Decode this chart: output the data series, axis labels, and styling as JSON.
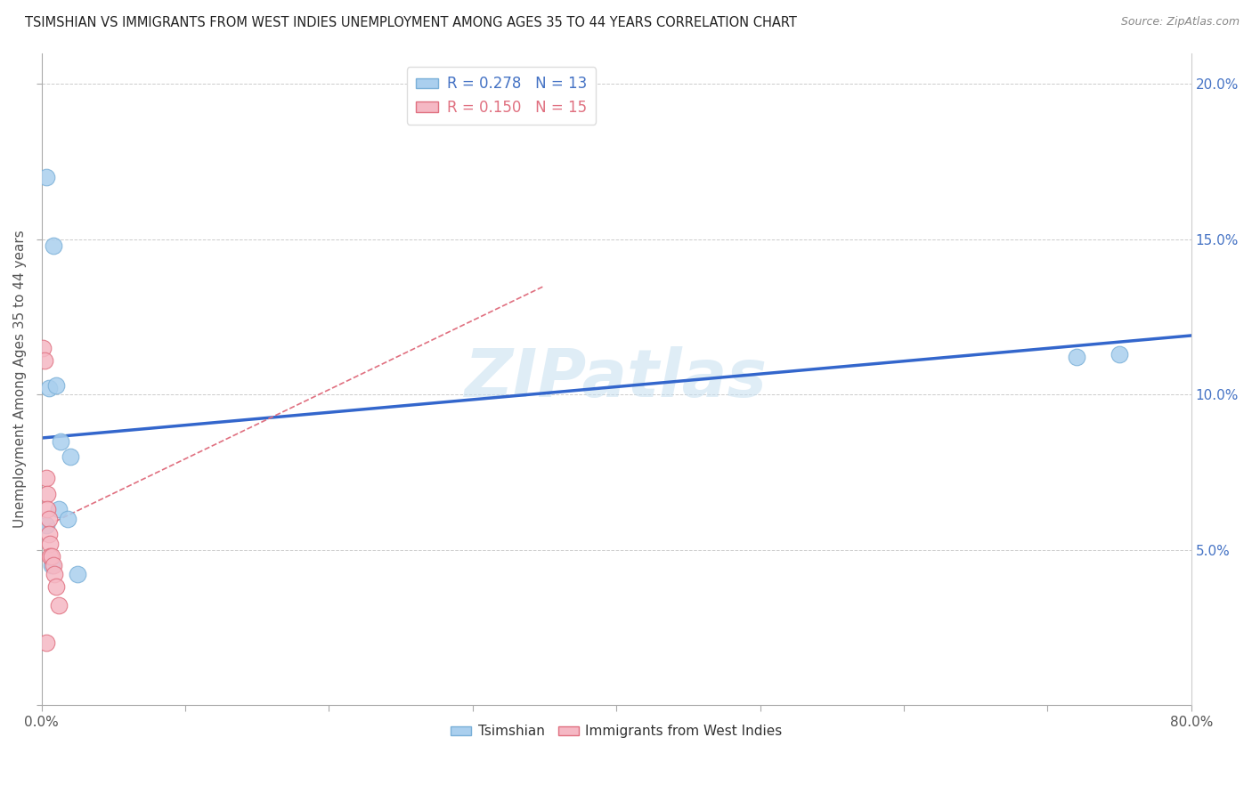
{
  "title": "TSIMSHIAN VS IMMIGRANTS FROM WEST INDIES UNEMPLOYMENT AMONG AGES 35 TO 44 YEARS CORRELATION CHART",
  "source": "Source: ZipAtlas.com",
  "ylabel": "Unemployment Among Ages 35 to 44 years",
  "xlim": [
    0.0,
    0.8
  ],
  "ylim": [
    0.0,
    0.21
  ],
  "xticks": [
    0.0,
    0.1,
    0.2,
    0.3,
    0.4,
    0.5,
    0.6,
    0.7,
    0.8
  ],
  "xticklabels_sparse": {
    "0.0": "0.0%",
    "0.8": "80.0%"
  },
  "yticks_left": [
    0.0,
    0.05,
    0.1,
    0.15,
    0.2
  ],
  "yticks_right": [
    0.05,
    0.1,
    0.15,
    0.2
  ],
  "yticklabels_right": [
    "5.0%",
    "10.0%",
    "15.0%",
    "20.0%"
  ],
  "watermark_text": "ZIPatlas",
  "series": [
    {
      "name": "Tsimshian",
      "color": "#aacfee",
      "edge_color": "#7ab0d8",
      "R": 0.278,
      "N": 13,
      "x": [
        0.003,
        0.008,
        0.005,
        0.01,
        0.013,
        0.012,
        0.018,
        0.02,
        0.003,
        0.007,
        0.025,
        0.72,
        0.75
      ],
      "y": [
        0.17,
        0.148,
        0.102,
        0.103,
        0.085,
        0.063,
        0.06,
        0.08,
        0.058,
        0.045,
        0.042,
        0.112,
        0.113
      ],
      "trend_x": [
        0.0,
        0.8
      ],
      "trend_y": [
        0.086,
        0.119
      ],
      "trend_color": "#3366cc",
      "trend_style": "solid",
      "trend_linewidth": 2.5
    },
    {
      "name": "Immigrants from West Indies",
      "color": "#f5b8c4",
      "edge_color": "#e07080",
      "R": 0.15,
      "N": 15,
      "x": [
        0.001,
        0.002,
        0.003,
        0.004,
        0.004,
        0.005,
        0.005,
        0.006,
        0.006,
        0.007,
        0.008,
        0.009,
        0.01,
        0.012,
        0.003
      ],
      "y": [
        0.115,
        0.111,
        0.073,
        0.068,
        0.063,
        0.06,
        0.055,
        0.052,
        0.048,
        0.048,
        0.045,
        0.042,
        0.038,
        0.032,
        0.02
      ],
      "trend_x": [
        0.0,
        0.35
      ],
      "trend_y": [
        0.057,
        0.135
      ],
      "trend_color": "#e07080",
      "trend_style": "dashed",
      "trend_linewidth": 1.2
    }
  ]
}
